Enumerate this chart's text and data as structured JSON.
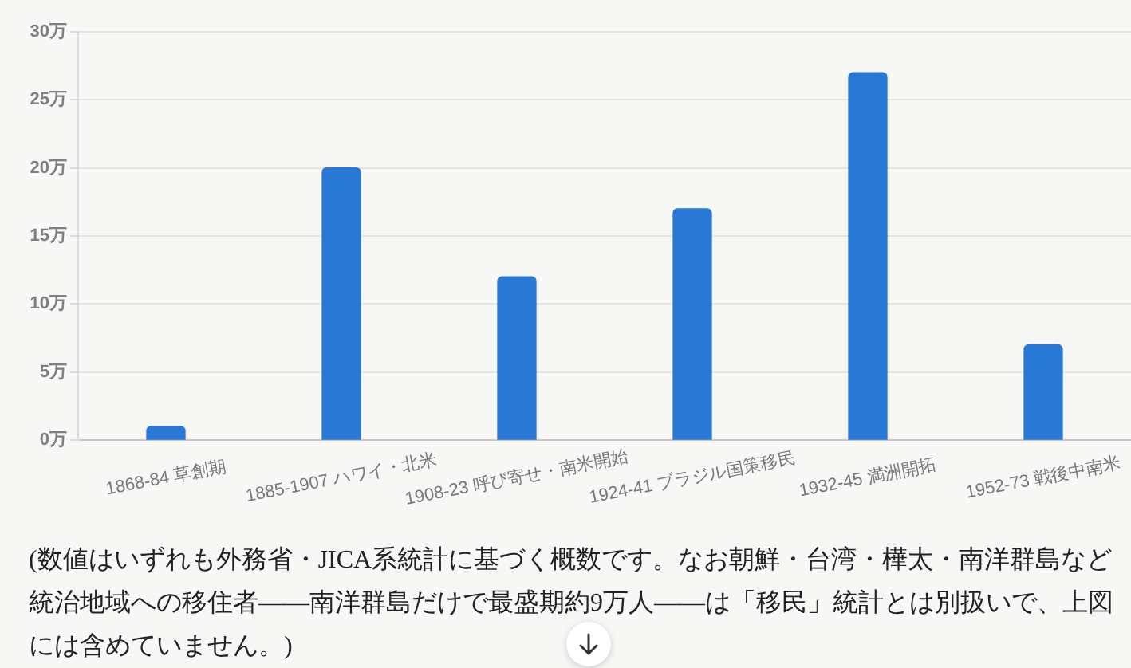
{
  "chart_data": {
    "type": "bar",
    "categories": [
      "1868-84 草創期",
      "1885-1907 ハワイ・北米",
      "1908-23 呼び寄せ・南米開始",
      "1924-41 ブラジル国策移民",
      "1932-45 満洲開拓",
      "1952-73 戦後中南米"
    ],
    "values": [
      1,
      20,
      12,
      17,
      27,
      7
    ],
    "color": "#2a78d6",
    "ylim": [
      0,
      30
    ],
    "yticks": [
      {
        "value": 0,
        "label": "0万"
      },
      {
        "value": 5,
        "label": "5万"
      },
      {
        "value": 10,
        "label": "10万"
      },
      {
        "value": 15,
        "label": "15万"
      },
      {
        "value": 20,
        "label": "20万"
      },
      {
        "value": 25,
        "label": "25万"
      },
      {
        "value": 30,
        "label": "30万"
      }
    ],
    "grid": "y",
    "annotations": [
      "(数値はいずれも外務省・JICA系統計に基づく概数です。なお朝鮮・台湾・樺太・南洋群島など統治地域への移住者——南洋群島だけで最盛期約9万人——は「移民」統計とは別扱いで、上図には含めていません。)"
    ]
  }
}
